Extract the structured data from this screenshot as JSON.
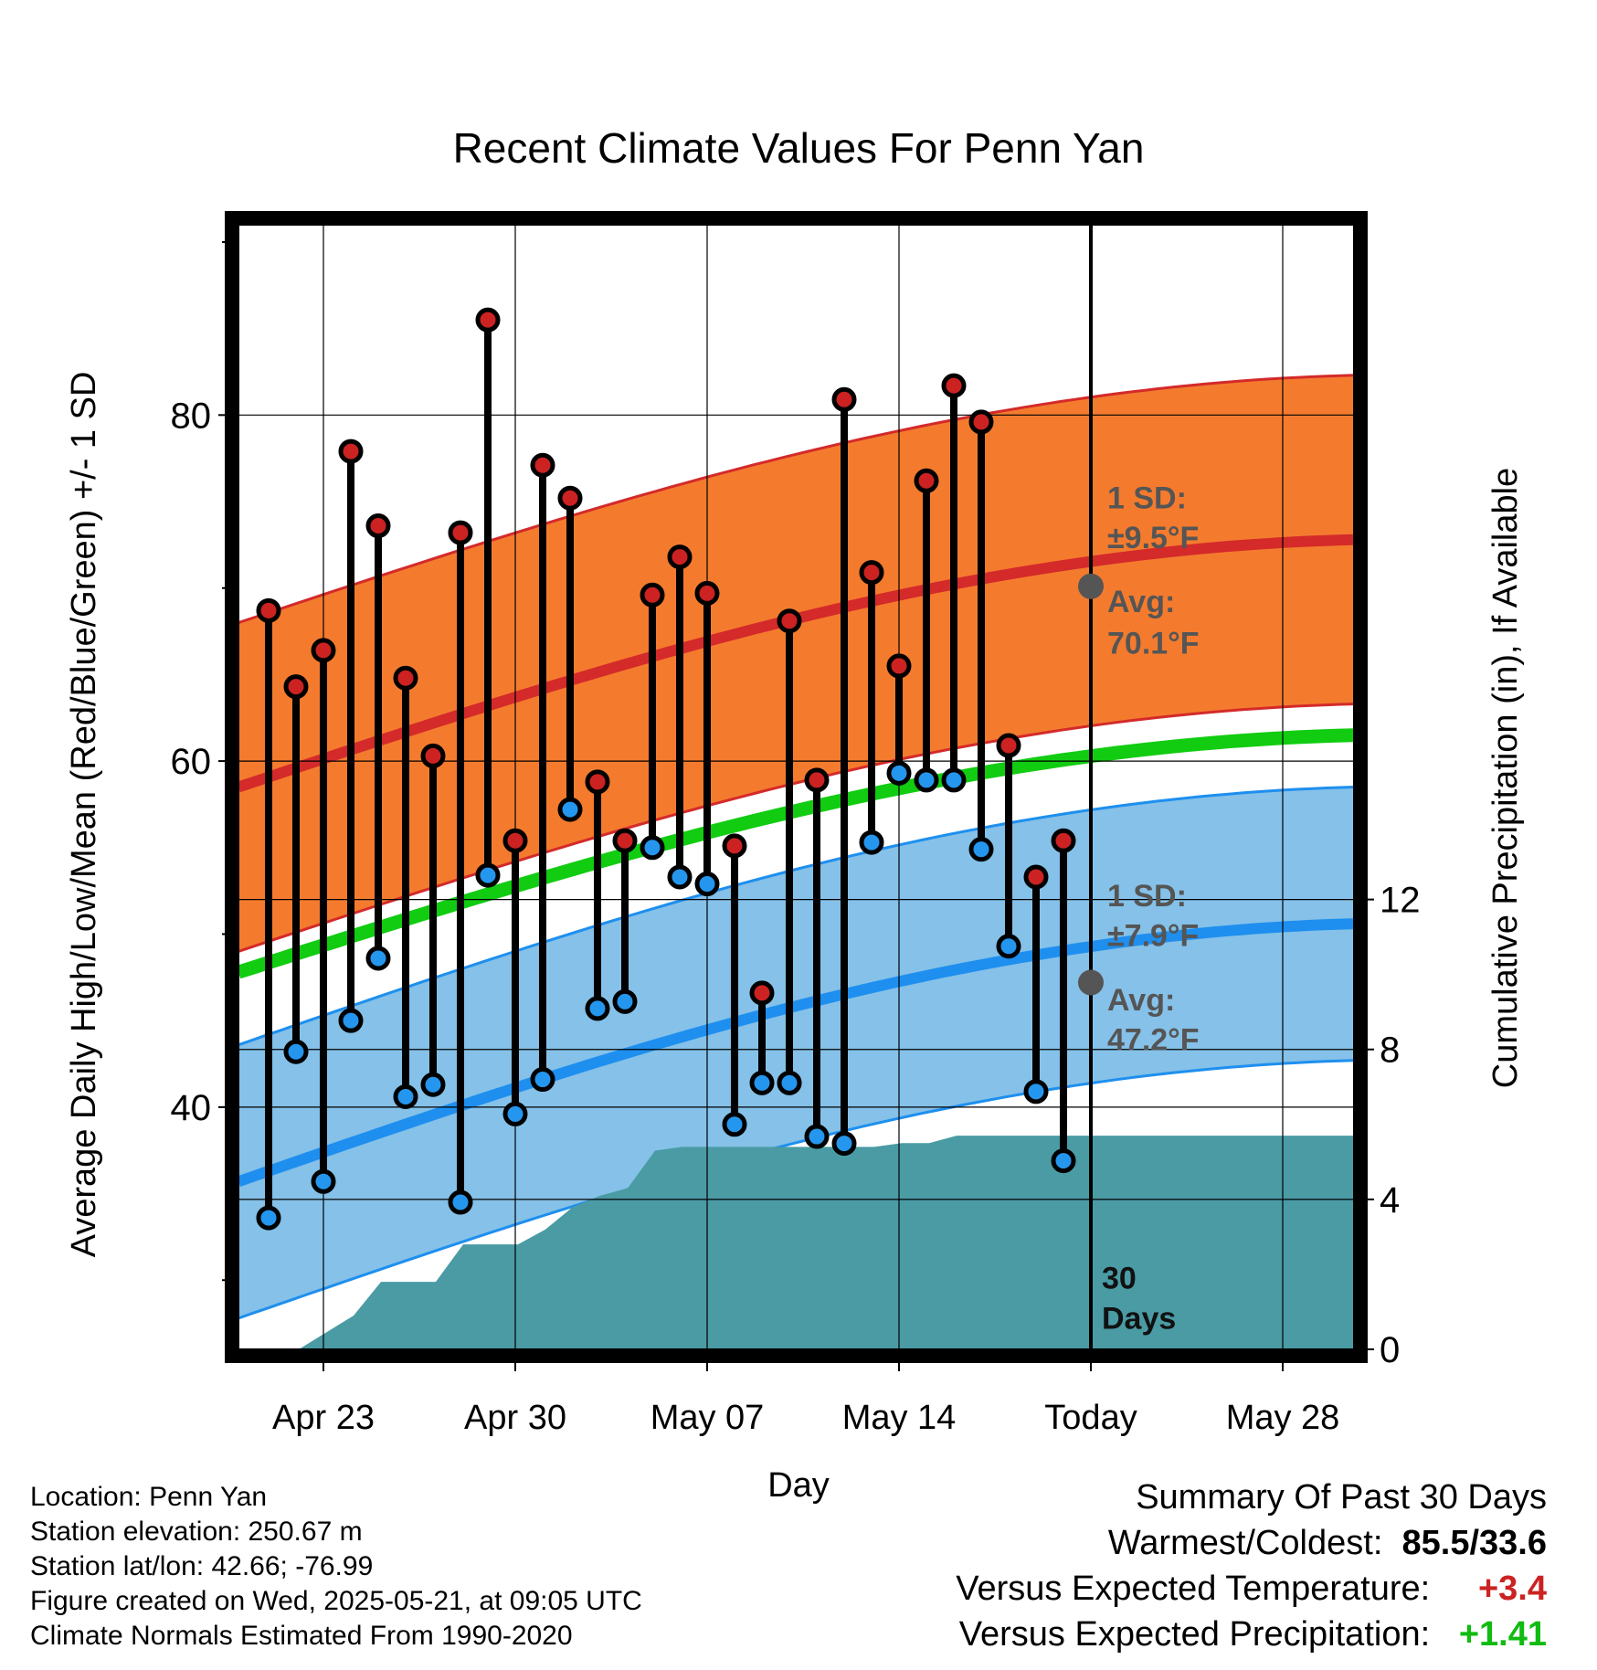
{
  "chart_data": {
    "type": "line",
    "title": "Recent Climate Values For Penn Yan",
    "xlabel": "Day",
    "ylabel": "Average Daily High/Low/Mean (Red/Blue/Green) +/- 1 SD",
    "y2label": "Cumulative Precipitation (in), If Available",
    "ylim": [
      26,
      91
    ],
    "y2lim": [
      0,
      30
    ],
    "yticks": [
      40,
      60,
      80
    ],
    "y2ticks": [
      0,
      4,
      8,
      12
    ],
    "xlim": [
      -3.1,
      37.6
    ],
    "xticks": [
      {
        "x": 0,
        "label": "Apr 23"
      },
      {
        "x": 7,
        "label": "Apr 30"
      },
      {
        "x": 14,
        "label": "May 07"
      },
      {
        "x": 21,
        "label": "May 14"
      },
      {
        "x": 28,
        "label": "Today"
      },
      {
        "x": 35,
        "label": "May 28"
      }
    ],
    "x_days_from": "Apr 23",
    "highs": [
      68.7,
      64.3,
      66.4,
      77.9,
      73.6,
      64.8,
      60.3,
      73.2,
      85.5,
      55.4,
      77.1,
      75.2,
      58.8,
      55.4,
      69.6,
      71.8,
      69.7,
      55.1,
      46.6,
      68.1,
      58.9,
      80.9,
      70.9,
      65.5,
      76.2,
      81.7,
      79.6,
      60.9,
      53.3,
      55.4
    ],
    "lows": [
      33.6,
      43.2,
      35.7,
      45.0,
      48.6,
      40.6,
      41.3,
      34.5,
      53.4,
      39.6,
      41.6,
      57.2,
      45.7,
      46.1,
      55.0,
      53.3,
      52.9,
      39.0,
      41.4,
      41.4,
      38.3,
      37.9,
      55.3,
      59.3,
      58.9,
      58.9,
      54.9,
      49.3,
      40.9,
      36.9
    ],
    "normal_high_start": 58.5,
    "normal_high_end": 72.8,
    "normal_high_today": 70.1,
    "normal_low_start": 35.7,
    "normal_low_end": 50.6,
    "normal_low_today": 47.2,
    "normal_mean_start": 47.8,
    "normal_mean_end": 61.5,
    "high_sd": 9.5,
    "low_sd": 7.9,
    "precip_x": [
      -0.9,
      1.1,
      2.1,
      3.1,
      4.1,
      5.1,
      6.1,
      7.1,
      8.1,
      9.1,
      10.1,
      11.1,
      12.1,
      13.1,
      14.1,
      20.1,
      21.1,
      22.1,
      23.1,
      37.6
    ],
    "precip_cum": [
      0,
      0.9,
      1.8,
      1.8,
      1.8,
      2.8,
      2.8,
      2.8,
      3.2,
      3.8,
      4.1,
      4.3,
      5.3,
      5.4,
      5.4,
      5.4,
      5.5,
      5.5,
      5.7,
      5.7
    ],
    "annotations": {
      "high_sd_label": "1 SD:",
      "high_sd_value": "±9.5°F",
      "high_avg_label": "Avg:",
      "high_avg_value": "70.1°F",
      "low_sd_label": "1 SD:",
      "low_sd_value": "±7.9°F",
      "low_avg_label": "Avg:",
      "low_avg_value": "47.2°F",
      "window_count": "30",
      "window_unit": "Days"
    },
    "colors": {
      "high_band": "#f47b2e",
      "high_line": "#d42a2a",
      "low_band": "#85c1e8",
      "low_line": "#1e8fef",
      "mean_line": "#11cc11",
      "precip": "#4a9ba4",
      "high_dot": "#cc2222",
      "low_dot": "#2596ee"
    }
  },
  "info": {
    "location": "Location: Penn Yan",
    "elevation": "Station elevation: 250.67 m",
    "latlon": "Station lat/lon: 42.66; -76.99",
    "created": "Figure created on Wed, 2025-05-21, at 09:05 UTC",
    "normals": "Climate Normals Estimated From 1990-2020"
  },
  "summary": {
    "heading": "Summary Of Past 30 Days",
    "warm_cold_label": "Warmest/Coldest:",
    "warm_cold_value": "85.5/33.6",
    "temp_label": "Versus Expected Temperature:",
    "temp_value": "+3.4",
    "precip_label": "Versus Expected Precipitation:",
    "precip_value": "+1.41"
  }
}
